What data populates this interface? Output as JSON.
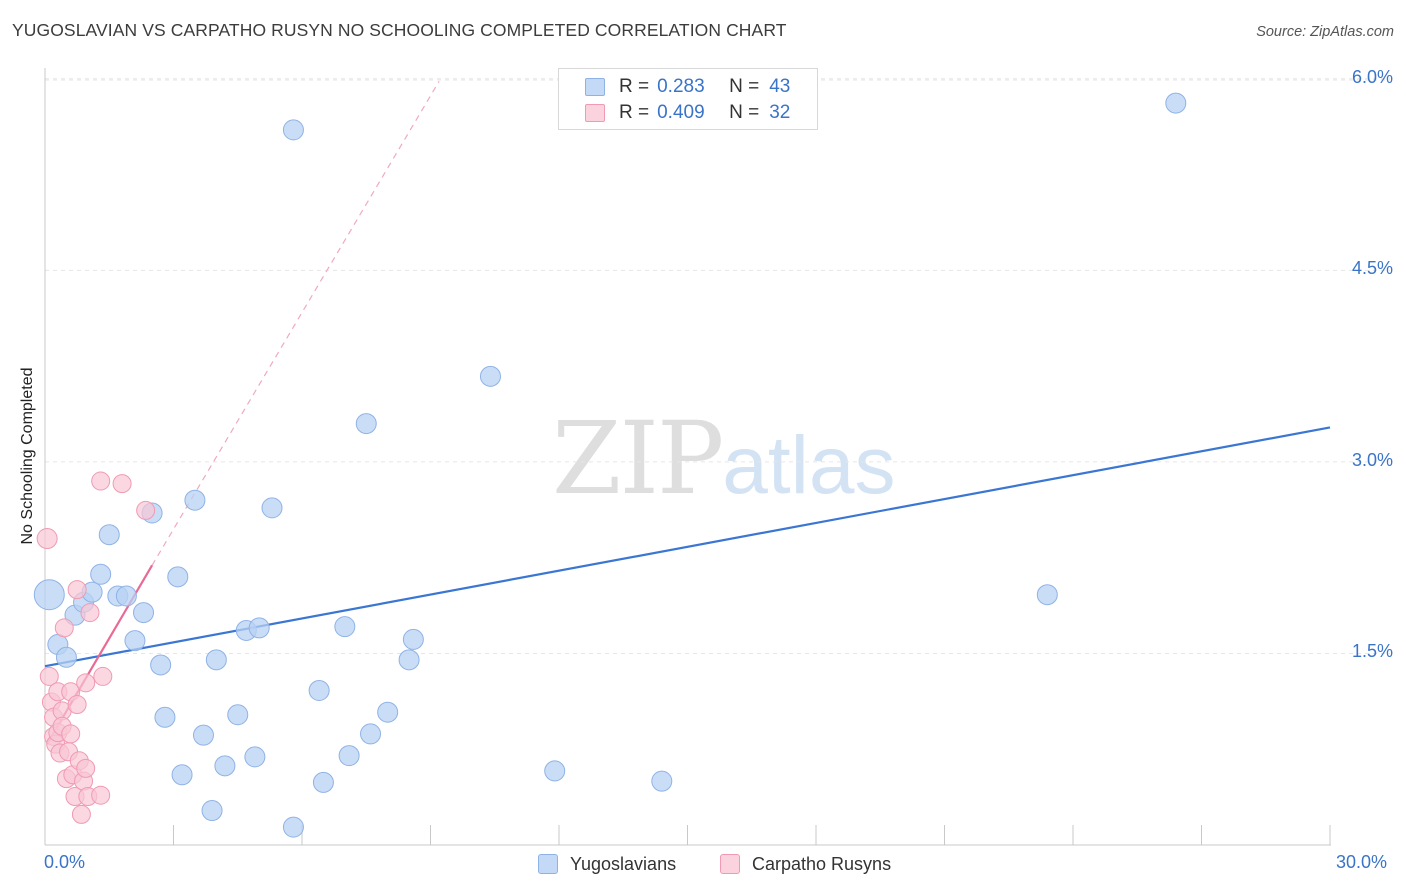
{
  "title": "YUGOSLAVIAN VS CARPATHO RUSYN NO SCHOOLING COMPLETED CORRELATION CHART",
  "source": "Source: ZipAtlas.com",
  "watermark": {
    "zip": "ZIP",
    "atlas": "atlas"
  },
  "colors": {
    "blue_fill": "#b8d1f3",
    "blue_stroke": "#8fb2e6",
    "blue_line": "#3a76d2",
    "pink_fill": "#f8c6d4",
    "pink_stroke": "#f09ab3",
    "pink_line": "#e96a94",
    "grid": "#e6e6e6",
    "axis_text": "#3a74c8"
  },
  "legend": {
    "rows": [
      {
        "r_label": "R =",
        "r_value": "0.283",
        "n_label": "N =",
        "n_value": "43"
      },
      {
        "r_label": "R =",
        "r_value": "0.409",
        "n_label": "N =",
        "n_value": "32"
      }
    ]
  },
  "bottom_legend": [
    {
      "label": "Yugoslavians"
    },
    {
      "label": "Carpatho Rusyns"
    }
  ],
  "chart_data": {
    "type": "scatter",
    "title": "YUGOSLAVIAN VS CARPATHO RUSYN NO SCHOOLING COMPLETED CORRELATION CHART",
    "xlabel": "",
    "ylabel": "No Schooling Completed",
    "xlim": [
      0,
      30
    ],
    "ylim": [
      0,
      6.2
    ],
    "x_tick_labels": [
      {
        "value": 0,
        "label": "0.0%"
      },
      {
        "value": 30,
        "label": "30.0%"
      }
    ],
    "y_tick_labels": [
      {
        "value": 1.5,
        "label": "1.5%"
      },
      {
        "value": 3.0,
        "label": "3.0%"
      },
      {
        "value": 4.5,
        "label": "4.5%"
      },
      {
        "value": 6.0,
        "label": "6.0%"
      }
    ],
    "grid": true,
    "series": [
      {
        "name": "Yugoslavians",
        "color": "#b8d1f3",
        "trend": {
          "x": [
            0,
            30
          ],
          "y": [
            1.4,
            3.27
          ]
        },
        "points": [
          [
            0.1,
            1.96,
            30
          ],
          [
            0.3,
            1.57,
            20
          ],
          [
            0.5,
            1.47,
            20
          ],
          [
            0.7,
            1.8,
            20
          ],
          [
            0.9,
            1.9,
            20
          ],
          [
            1.1,
            1.98,
            20
          ],
          [
            1.3,
            2.12,
            20
          ],
          [
            1.5,
            2.43,
            20
          ],
          [
            1.7,
            1.95,
            20
          ],
          [
            1.9,
            1.95,
            20
          ],
          [
            2.1,
            1.6,
            20
          ],
          [
            2.3,
            1.82,
            20
          ],
          [
            2.5,
            2.6,
            20
          ],
          [
            2.7,
            1.41,
            20
          ],
          [
            2.8,
            1.0,
            20
          ],
          [
            3.1,
            2.1,
            20
          ],
          [
            3.2,
            0.55,
            20
          ],
          [
            3.5,
            2.7,
            20
          ],
          [
            3.7,
            0.86,
            20
          ],
          [
            3.9,
            0.27,
            20
          ],
          [
            4.0,
            1.45,
            20
          ],
          [
            4.2,
            0.62,
            20
          ],
          [
            4.5,
            1.02,
            20
          ],
          [
            4.7,
            1.68,
            20
          ],
          [
            4.9,
            0.69,
            20
          ],
          [
            5.0,
            1.7,
            20
          ],
          [
            5.3,
            2.64,
            20
          ],
          [
            5.8,
            5.6,
            20
          ],
          [
            5.8,
            0.14,
            20
          ],
          [
            6.4,
            1.21,
            20
          ],
          [
            6.5,
            0.49,
            20
          ],
          [
            7.0,
            1.71,
            20
          ],
          [
            7.1,
            0.7,
            20
          ],
          [
            7.5,
            3.3,
            20
          ],
          [
            7.6,
            0.87,
            20
          ],
          [
            8.0,
            1.04,
            20
          ],
          [
            8.5,
            1.45,
            20
          ],
          [
            8.6,
            1.61,
            20
          ],
          [
            10.4,
            3.67,
            20
          ],
          [
            11.9,
            0.58,
            20
          ],
          [
            14.4,
            0.5,
            20
          ],
          [
            23.4,
            1.96,
            20
          ],
          [
            26.4,
            5.81,
            20
          ]
        ]
      },
      {
        "name": "Carpatho Rusyns",
        "color": "#f8c6d4",
        "trend": {
          "x": [
            0.05,
            2.5
          ],
          "y": [
            0.79,
            2.19
          ]
        },
        "trend_extension": {
          "x": [
            2.5,
            9.2
          ],
          "y": [
            2.19,
            5.98
          ]
        },
        "points": [
          [
            0.05,
            2.4,
            20
          ],
          [
            0.1,
            1.32,
            18
          ],
          [
            0.15,
            1.12,
            18
          ],
          [
            0.2,
            1.0,
            18
          ],
          [
            0.2,
            0.85,
            18
          ],
          [
            0.25,
            0.79,
            18
          ],
          [
            0.3,
            1.2,
            18
          ],
          [
            0.3,
            0.88,
            18
          ],
          [
            0.35,
            0.72,
            18
          ],
          [
            0.4,
            1.05,
            18
          ],
          [
            0.4,
            0.93,
            18
          ],
          [
            0.45,
            1.7,
            18
          ],
          [
            0.5,
            0.52,
            18
          ],
          [
            0.55,
            0.73,
            18
          ],
          [
            0.6,
            0.87,
            18
          ],
          [
            0.6,
            1.2,
            18
          ],
          [
            0.65,
            0.55,
            18
          ],
          [
            0.7,
            0.38,
            18
          ],
          [
            0.75,
            1.1,
            18
          ],
          [
            0.75,
            2.0,
            18
          ],
          [
            0.8,
            0.66,
            18
          ],
          [
            0.85,
            0.24,
            18
          ],
          [
            0.9,
            0.5,
            18
          ],
          [
            0.95,
            0.6,
            18
          ],
          [
            0.95,
            1.27,
            18
          ],
          [
            1.0,
            0.38,
            18
          ],
          [
            1.05,
            1.82,
            18
          ],
          [
            1.3,
            0.39,
            18
          ],
          [
            1.35,
            1.32,
            18
          ],
          [
            1.3,
            2.85,
            18
          ],
          [
            1.8,
            2.83,
            18
          ],
          [
            2.35,
            2.62,
            18
          ]
        ]
      }
    ]
  }
}
